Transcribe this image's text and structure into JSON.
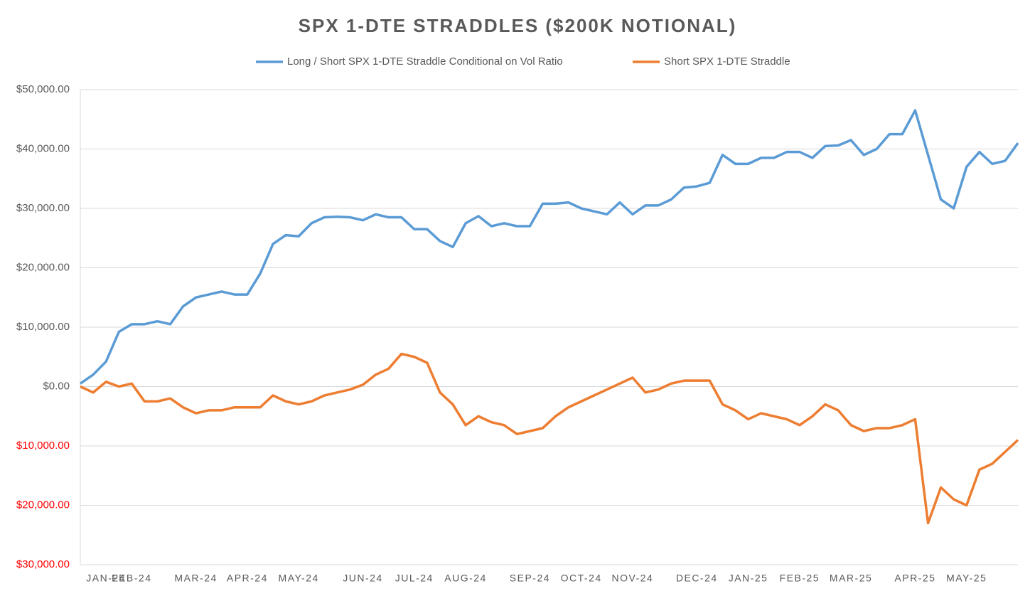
{
  "chart_data": {
    "type": "line",
    "title": "SPX 1-DTE STRADDLES ($200K NOTIONAL)",
    "categories": [
      null,
      null,
      "JAN-24",
      null,
      "FEB-24",
      null,
      null,
      null,
      null,
      "MAR-24",
      null,
      null,
      null,
      "APR-24",
      null,
      null,
      null,
      "MAY-24",
      null,
      null,
      null,
      null,
      "JUN-24",
      null,
      null,
      null,
      "JUL-24",
      null,
      null,
      null,
      "AUG-24",
      null,
      null,
      null,
      null,
      "SEP-24",
      null,
      null,
      null,
      "OCT-24",
      null,
      null,
      null,
      "NOV-24",
      null,
      null,
      null,
      null,
      "DEC-24",
      null,
      null,
      null,
      "JAN-25",
      null,
      null,
      null,
      "FEB-25",
      null,
      null,
      null,
      "MAR-25",
      null,
      null,
      null,
      null,
      "APR-25",
      null,
      null,
      null,
      "MAY-25",
      null,
      null,
      null,
      null
    ],
    "series": [
      {
        "name": "Long / Short SPX 1-DTE Straddle Conditional on Vol Ratio",
        "color": "#5b9bd5",
        "values": [
          500,
          2000,
          4200,
          9200,
          10500,
          10500,
          11000,
          10500,
          13500,
          15000,
          15500,
          16000,
          15500,
          15500,
          19000,
          24000,
          25500,
          25300,
          27500,
          28500,
          28600,
          28500,
          28000,
          29000,
          28500,
          28500,
          26500,
          26500,
          24500,
          23500,
          27500,
          28700,
          27000,
          27500,
          27000,
          27000,
          30800,
          30800,
          31000,
          30000,
          29500,
          29000,
          31000,
          29000,
          30500,
          30500,
          31500,
          33500,
          33700,
          34300,
          39000,
          37500,
          37500,
          38500,
          38500,
          39500,
          39500,
          38500,
          40500,
          40600,
          41500,
          39000,
          40000,
          42500,
          42500,
          46500,
          39000,
          31500,
          30000,
          37000,
          39500,
          37500,
          38000,
          41000
        ]
      },
      {
        "name": "Short SPX 1-DTE Straddle",
        "color": "#ed7d31",
        "values": [
          0,
          -1000,
          800,
          0,
          500,
          -2500,
          -2500,
          -2000,
          -3500,
          -4500,
          -4000,
          -4000,
          -3500,
          -3500,
          -3500,
          -1500,
          -2500,
          -3000,
          -2500,
          -1500,
          -1000,
          -500,
          300,
          2000,
          3000,
          5500,
          5000,
          4000,
          -1000,
          -3000,
          -6500,
          -5000,
          -6000,
          -6500,
          -8000,
          -7500,
          -7000,
          -5000,
          -3500,
          -2500,
          -1500,
          -500,
          500,
          1500,
          -1000,
          -500,
          500,
          1000,
          1000,
          1000,
          -3000,
          -4000,
          -5500,
          -4500,
          -5000,
          -5500,
          -6500,
          -5000,
          -3000,
          -4000,
          -6500,
          -7500,
          -7000,
          -7000,
          -6500,
          -5500,
          -23000,
          -17000,
          -19000,
          -20000,
          -14000,
          -13000,
          -11000,
          -9000
        ]
      }
    ],
    "ylim": [
      -30000,
      50000
    ],
    "yticks": [
      {
        "value": -30000,
        "label": "$30,000.00"
      },
      {
        "value": -20000,
        "label": "$20,000.00"
      },
      {
        "value": -10000,
        "label": "$10,000.00"
      },
      {
        "value": 0,
        "label": "$0.00"
      },
      {
        "value": 10000,
        "label": "$10,000.00"
      },
      {
        "value": 20000,
        "label": "$20,000.00"
      },
      {
        "value": 30000,
        "label": "$30,000.00"
      },
      {
        "value": 40000,
        "label": "$40,000.00"
      },
      {
        "value": 50000,
        "label": "$50,000.00"
      }
    ],
    "negative_tick_color": "#ff0000",
    "grid": true,
    "legend": "top"
  }
}
